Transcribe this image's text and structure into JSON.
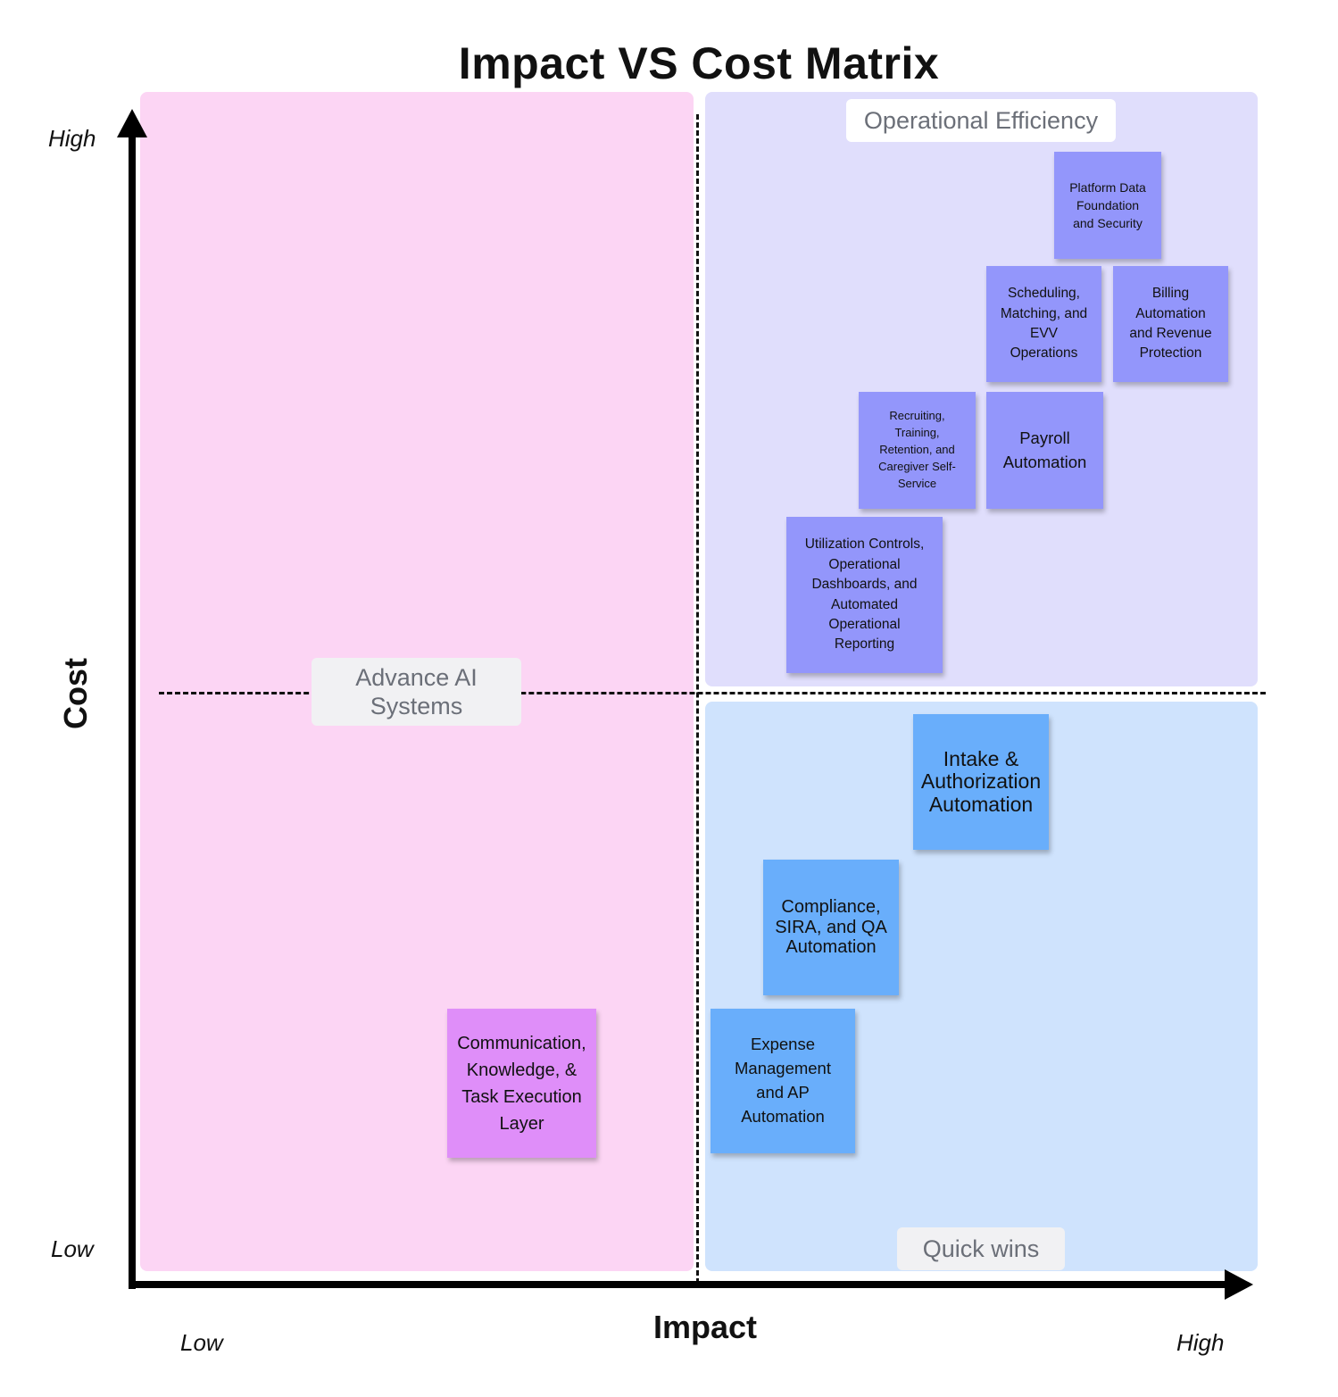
{
  "title": "Impact VS Cost Matrix",
  "axes": {
    "y_title": "Cost",
    "x_title": "Impact",
    "y_high": "High",
    "y_low": "Low",
    "x_low": "Low",
    "x_high": "High"
  },
  "quadrants": {
    "top_right": "Operational Efficiency",
    "left": "Advance AI Systems",
    "bottom_right": "Quick wins"
  },
  "notes": {
    "platform": "Platform Data Foundation and Security",
    "scheduling": "Scheduling, Matching, and EVV Operations",
    "billing": "Billing Automation and Revenue Protection",
    "recruiting": "Recruiting, Training, Retention, and Caregiver Self-Service",
    "payroll": "Payroll Automation",
    "utilization": "Utilization Controls, Operational Dashboards, and Automated Operational Reporting",
    "intake": "Intake & Authorization Automation",
    "compliance": "Compliance, SIRA, and QA Automation",
    "expense": "Expense Management and AP Automation",
    "communication": "Communication, Knowledge, & Task Execution Layer"
  },
  "colors": {
    "quadrant_pink": "#fcd5f4",
    "quadrant_lavender": "#e0defc",
    "quadrant_blue": "#cfe3fd",
    "note_purple": "#9396fb",
    "note_blue": "#69aefb",
    "note_pink": "#df8ef9"
  }
}
